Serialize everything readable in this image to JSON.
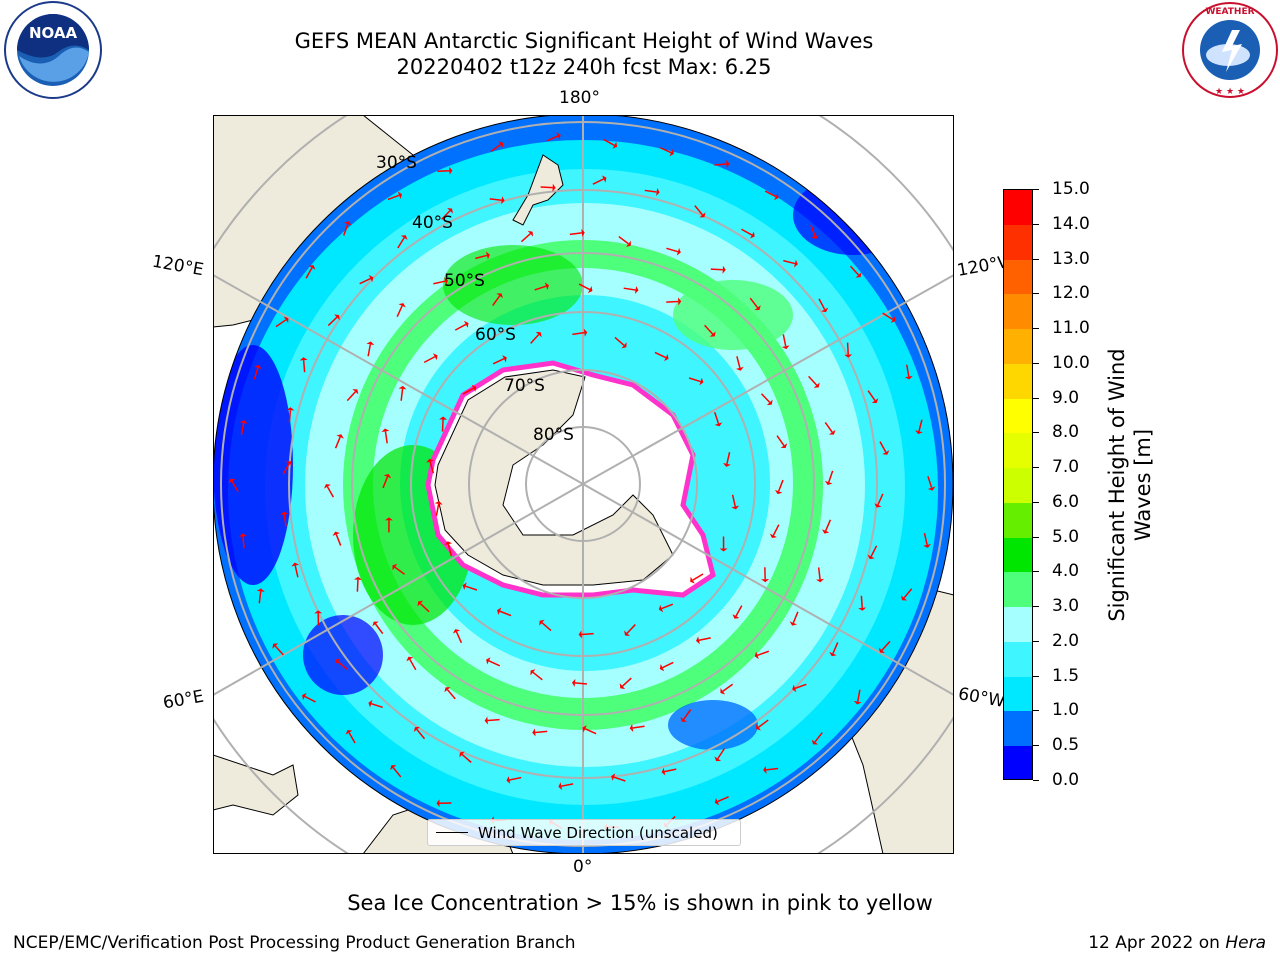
{
  "title": {
    "line1": "GEFS MEAN Antarctic Significant Height of Wind Waves",
    "line2": "20220402 t12z 240h fcst   Max: 6.25"
  },
  "logos": {
    "left": "noaa-logo",
    "right": "national-weather-service-logo"
  },
  "map": {
    "projection": "south-polar-stereographic",
    "longitude_labels": [
      "180°",
      "120°E",
      "120°W",
      "60°E",
      "60°W",
      "0°"
    ],
    "latitude_labels": [
      "30°S",
      "40°S",
      "50°S",
      "60°S",
      "70°S",
      "80°S"
    ],
    "legend_label": "Wind Wave Direction (unscaled)",
    "arrow_color": "#ff0000",
    "land_color": "#efebdc"
  },
  "colorbar": {
    "label": "Significant Height of Wind Waves [m]",
    "ticks": [
      "0.0",
      "0.5",
      "1.0",
      "1.5",
      "2.0",
      "3.0",
      "4.0",
      "5.0",
      "6.0",
      "7.0",
      "8.0",
      "9.0",
      "10.0",
      "11.0",
      "12.0",
      "13.0",
      "14.0",
      "15.0"
    ],
    "colors": [
      "#0000ff",
      "#0070ff",
      "#00e8ff",
      "#3ff5ff",
      "#a6ffff",
      "#4dff7a",
      "#00e600",
      "#66ee00",
      "#ccff00",
      "#e6ff00",
      "#ffff00",
      "#ffd700",
      "#ffb000",
      "#ff8c00",
      "#ff6000",
      "#ff3000",
      "#ff0000"
    ]
  },
  "caption": "Sea Ice Concentration > 15% is shown in pink to yellow",
  "footer": {
    "left": "NCEP/EMC/Verification Post Processing Product Generation Branch",
    "right_date": "12 Apr 2022 on",
    "right_host": "Hera"
  }
}
